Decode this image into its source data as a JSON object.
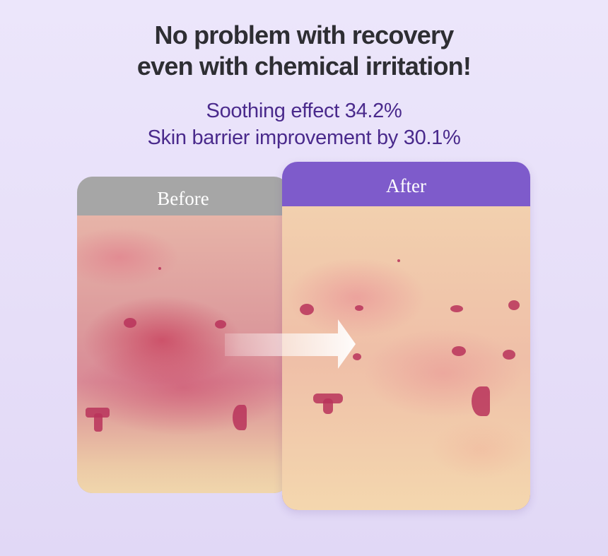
{
  "headline": {
    "line1": "No problem with recovery",
    "line2": "even with chemical irritation!"
  },
  "claims": {
    "line1": "Soothing effect 34.2%",
    "line2": "Skin barrier improvement by 30.1%"
  },
  "before": {
    "label": "Before",
    "header_color": "#a6a6a6"
  },
  "after": {
    "label": "After",
    "header_color": "#7e5bcb"
  },
  "arrow": {
    "icon": "right-arrow-icon"
  }
}
